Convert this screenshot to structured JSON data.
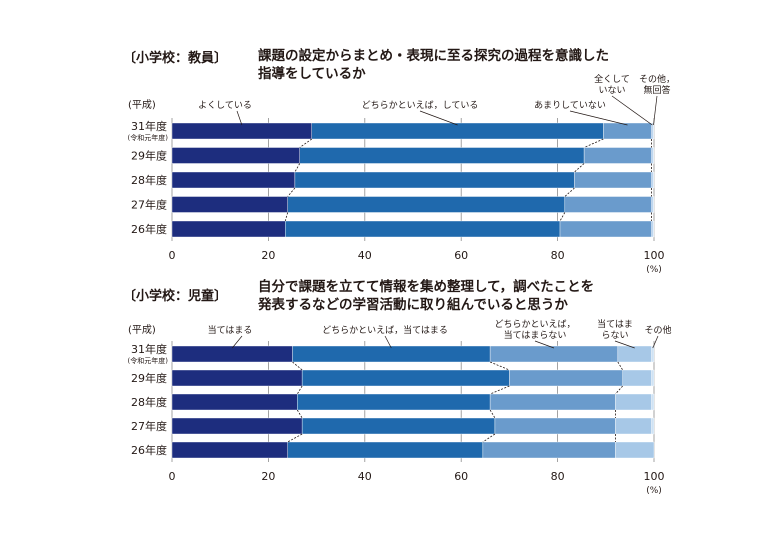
{
  "axis_unit": "(%)",
  "colors": {
    "seg1": "#1d2d7e",
    "seg2": "#1f69ad",
    "seg3": "#6a9bcc",
    "seg4": "#a7c8e7",
    "seg5": "#cfe2f3",
    "grid": "#8c8c8c",
    "leader": "#231815"
  },
  "chart_data": [
    {
      "type": "bar",
      "stacked": true,
      "orientation": "horizontal",
      "tag": "〔小学校：教員〕",
      "title": "課題の設定からまとめ・表現に至る探究の過程を意識した指導をしているか",
      "title_lines": [
        "課題の設定からまとめ・表現に至る探究の過程を意識した",
        "指導をしているか"
      ],
      "year_header": "(平成)",
      "categories": [
        "31年度",
        "29年度",
        "28年度",
        "27年度",
        "26年度"
      ],
      "category_sub": [
        "(令和元年度)",
        "",
        "",
        "",
        ""
      ],
      "xlim": [
        0,
        100
      ],
      "xticks": [
        "0",
        "20",
        "40",
        "60",
        "80",
        "100"
      ],
      "grid": true,
      "series": [
        {
          "name": "よくしている",
          "name_lines": [
            "よくしている"
          ],
          "values": [
            29.0,
            26.5,
            25.5,
            24.0,
            23.5
          ]
        },
        {
          "name": "どちらかといえば，している",
          "name_lines": [
            "どちらかといえば，している"
          ],
          "values": [
            60.5,
            59.0,
            58.0,
            57.5,
            57.0
          ]
        },
        {
          "name": "あまりしていない",
          "name_lines": [
            "あまりしていない"
          ],
          "values": [
            10.0,
            14.0,
            16.0,
            18.0,
            19.0
          ]
        },
        {
          "name": "全くしていない",
          "name_lines": [
            "全くして",
            "いない"
          ],
          "values": [
            0.3,
            0.3,
            0.3,
            0.3,
            0.3
          ]
        },
        {
          "name": "その他，無回答",
          "name_lines": [
            "その他，",
            "無回答"
          ],
          "values": [
            0.2,
            0.2,
            0.2,
            0.2,
            0.2
          ]
        }
      ]
    },
    {
      "type": "bar",
      "stacked": true,
      "orientation": "horizontal",
      "tag": "〔小学校：児童〕",
      "title": "自分で課題を立てて情報を集め整理して，調べたことを発表するなどの学習活動に取り組んでいると思うか",
      "title_lines": [
        "自分で課題を立てて情報を集め整理して，調べたことを",
        "発表するなどの学習活動に取り組んでいると思うか"
      ],
      "year_header": "(平成)",
      "categories": [
        "31年度",
        "29年度",
        "28年度",
        "27年度",
        "26年度"
      ],
      "category_sub": [
        "(令和元年度)",
        "",
        "",
        "",
        ""
      ],
      "xlim": [
        0,
        100
      ],
      "xticks": [
        "0",
        "20",
        "40",
        "60",
        "80",
        "100"
      ],
      "grid": true,
      "series": [
        {
          "name": "当てはまる",
          "name_lines": [
            "当てはまる"
          ],
          "values": [
            25.0,
            27.0,
            26.0,
            27.0,
            24.0
          ]
        },
        {
          "name": "どちらかといえば，当てはまる",
          "name_lines": [
            "どちらかといえば，当てはまる"
          ],
          "values": [
            41.0,
            43.0,
            40.0,
            40.0,
            40.5
          ]
        },
        {
          "name": "どちらかといえば，当てはまらない",
          "name_lines": [
            "どちらかといえば，",
            "当てはまらない"
          ],
          "values": [
            26.5,
            23.5,
            26.0,
            25.0,
            27.5
          ]
        },
        {
          "name": "当てはまらない",
          "name_lines": [
            "当てはま",
            "らない"
          ],
          "values": [
            7.0,
            6.0,
            7.5,
            7.5,
            8.0
          ]
        },
        {
          "name": "その他",
          "name_lines": [
            "その他"
          ],
          "values": [
            0.5,
            0.5,
            0.5,
            0.5,
            0.0
          ]
        }
      ]
    }
  ]
}
